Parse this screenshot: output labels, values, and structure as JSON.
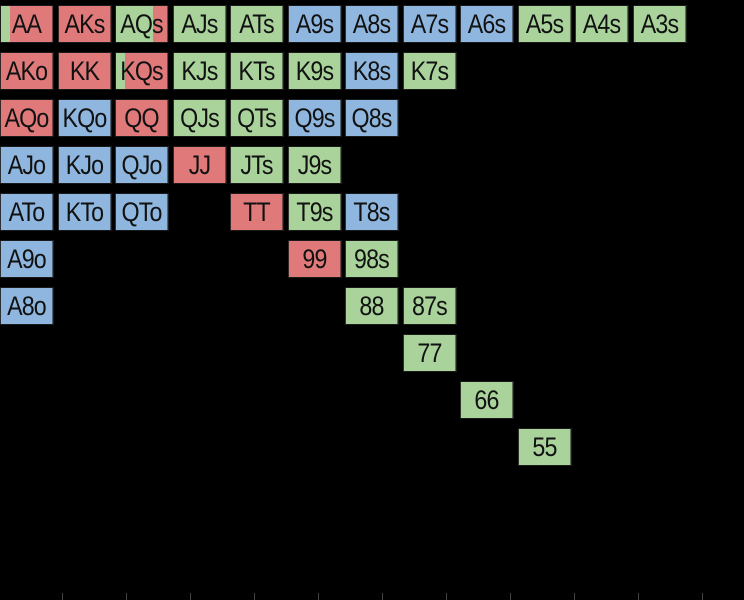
{
  "colors": {
    "red": "#e07a7a",
    "blue": "#8fb6de",
    "green": "#a9d39b",
    "background": "#000000"
  },
  "hand_grid": {
    "rows": [
      [
        "AA",
        "AKs",
        "AQs",
        "AJs",
        "ATs",
        "A9s",
        "A8s",
        "A7s",
        "A6s",
        "A5s",
        "A4s",
        "A3s"
      ],
      [
        "AKo",
        "KK",
        "KQs",
        "KJs",
        "KTs",
        "K9s",
        "K8s",
        "K7s",
        "",
        "",
        "",
        ""
      ],
      [
        "AQo",
        "KQo",
        "QQ",
        "QJs",
        "QTs",
        "Q9s",
        "Q8s",
        "",
        "",
        "",
        "",
        ""
      ],
      [
        "AJo",
        "KJo",
        "QJo",
        "JJ",
        "JTs",
        "J9s",
        "",
        "",
        "",
        "",
        "",
        ""
      ],
      [
        "ATo",
        "KTo",
        "QTo",
        "",
        "TT",
        "T9s",
        "T8s",
        "",
        "",
        "",
        "",
        ""
      ],
      [
        "A9o",
        "",
        "",
        "",
        "",
        "99",
        "98s",
        "",
        "",
        "",
        "",
        ""
      ],
      [
        "A8o",
        "",
        "",
        "",
        "",
        "",
        "88",
        "87s",
        "",
        "",
        "",
        ""
      ],
      [
        "",
        "",
        "",
        "",
        "",
        "",
        "",
        "77",
        "",
        "",
        "",
        ""
      ],
      [
        "",
        "",
        "",
        "",
        "",
        "",
        "",
        "",
        "66",
        "",
        "",
        ""
      ],
      [
        "",
        "",
        "",
        "",
        "",
        "",
        "",
        "",
        "",
        "55",
        "",
        ""
      ]
    ],
    "fills": [
      [
        "split-red-green",
        "red",
        "split-green-red",
        "green",
        "green",
        "blue",
        "blue",
        "blue",
        "blue",
        "green",
        "green",
        "green"
      ],
      [
        "red",
        "red",
        "split-red-green",
        "green",
        "green",
        "green",
        "blue",
        "green",
        "",
        "",
        "",
        ""
      ],
      [
        "red",
        "blue",
        "red",
        "green",
        "green",
        "blue",
        "blue",
        "",
        "",
        "",
        "",
        ""
      ],
      [
        "blue",
        "blue",
        "blue",
        "red",
        "green",
        "green",
        "",
        "",
        "",
        "",
        "",
        ""
      ],
      [
        "blue",
        "blue",
        "blue",
        "",
        "red",
        "green",
        "blue",
        "",
        "",
        "",
        "",
        ""
      ],
      [
        "blue",
        "",
        "",
        "",
        "",
        "red",
        "green",
        "",
        "",
        "",
        "",
        ""
      ],
      [
        "blue",
        "",
        "",
        "",
        "",
        "",
        "green",
        "green",
        "",
        "",
        "",
        ""
      ],
      [
        "",
        "",
        "",
        "",
        "",
        "",
        "",
        "green",
        "",
        "",
        "",
        ""
      ],
      [
        "",
        "",
        "",
        "",
        "",
        "",
        "",
        "",
        "green",
        "",
        "",
        ""
      ],
      [
        "",
        "",
        "",
        "",
        "",
        "",
        "",
        "",
        "",
        "green",
        "",
        ""
      ]
    ]
  }
}
